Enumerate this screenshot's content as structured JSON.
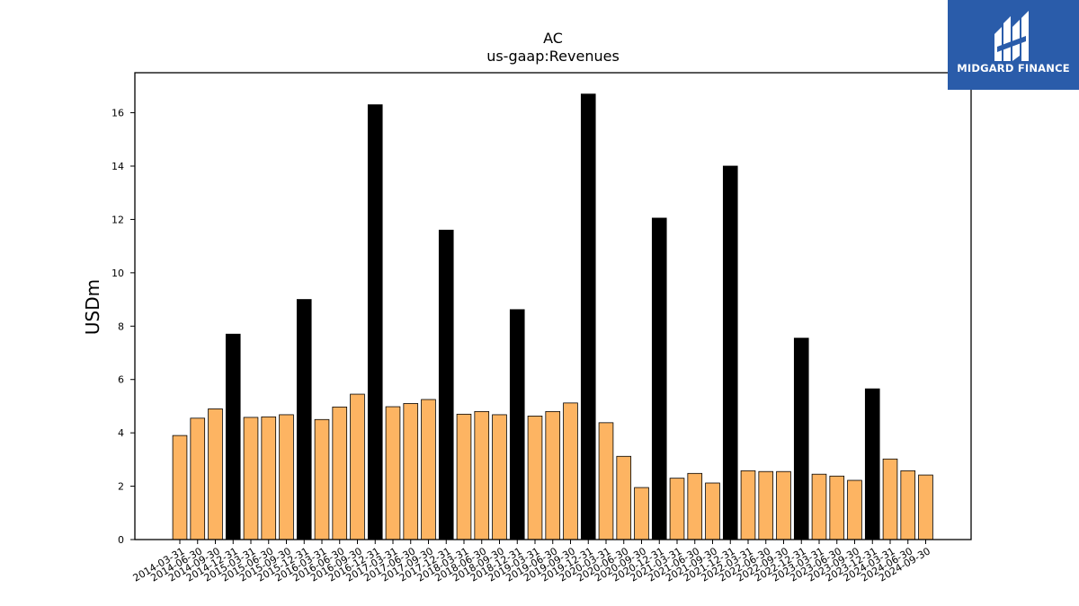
{
  "logo": {
    "text": "MIDGARD FINANCE",
    "bg_color": "#2a5caa"
  },
  "chart_data": {
    "type": "bar",
    "title": "AC",
    "subtitle": "us-gaap:Revenues",
    "ylabel": "USDm",
    "xlabel": "",
    "ylim": [
      0,
      17.5
    ],
    "yticks": [
      0,
      2,
      4,
      6,
      8,
      10,
      12,
      14,
      16
    ],
    "grid": false,
    "colors": {
      "quarter": "#fdb462",
      "annual": "#000000",
      "edge": "#000000"
    },
    "categories": [
      "2014-03-31",
      "2014-06-30",
      "2014-09-30",
      "2014-12-31",
      "2015-03-31",
      "2015-06-30",
      "2015-09-30",
      "2015-12-31",
      "2016-03-31",
      "2016-06-30",
      "2016-09-30",
      "2016-12-31",
      "2017-03-31",
      "2017-06-30",
      "2017-09-30",
      "2017-12-31",
      "2018-03-31",
      "2018-06-30",
      "2018-09-30",
      "2018-12-31",
      "2019-03-31",
      "2019-06-30",
      "2019-09-30",
      "2019-12-31",
      "2020-03-31",
      "2020-06-30",
      "2020-09-30",
      "2020-12-31",
      "2021-03-31",
      "2021-06-30",
      "2021-09-30",
      "2021-12-31",
      "2022-03-31",
      "2022-06-30",
      "2022-09-30",
      "2022-12-31",
      "2023-03-31",
      "2023-06-30",
      "2023-09-30",
      "2023-12-31",
      "2024-03-31",
      "2024-06-30",
      "2024-09-30"
    ],
    "values": [
      3.9,
      4.55,
      4.9,
      7.7,
      4.58,
      4.6,
      4.68,
      9.0,
      4.5,
      4.97,
      5.45,
      16.3,
      4.98,
      5.1,
      5.25,
      11.6,
      4.7,
      4.8,
      4.68,
      8.62,
      4.63,
      4.8,
      5.12,
      16.7,
      4.38,
      3.12,
      1.95,
      12.05,
      2.3,
      2.48,
      2.12,
      14.0,
      2.58,
      2.55,
      2.55,
      7.55,
      2.45,
      2.38,
      2.22,
      5.65,
      3.02,
      2.58,
      2.42
    ],
    "annual": [
      false,
      false,
      false,
      true,
      false,
      false,
      false,
      true,
      false,
      false,
      false,
      true,
      false,
      false,
      false,
      true,
      false,
      false,
      false,
      true,
      false,
      false,
      false,
      true,
      false,
      false,
      false,
      true,
      false,
      false,
      false,
      true,
      false,
      false,
      false,
      true,
      false,
      false,
      false,
      true,
      false,
      false,
      false
    ]
  }
}
